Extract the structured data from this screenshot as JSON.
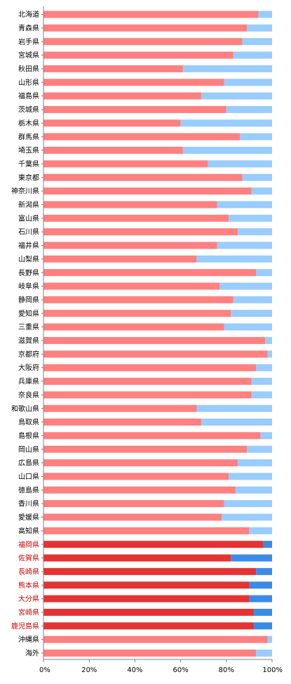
{
  "chart_data": {
    "type": "bar",
    "orientation": "horizontal",
    "stacked": true,
    "categories": [
      "北海道",
      "青森県",
      "岩手県",
      "宮城県",
      "秋田県",
      "山形県",
      "福島県",
      "茨城県",
      "栃木県",
      "群馬県",
      "埼玉県",
      "千葉県",
      "東京都",
      "神奈川県",
      "新潟県",
      "富山県",
      "石川県",
      "福井県",
      "山梨県",
      "長野県",
      "岐阜県",
      "静岡県",
      "愛知県",
      "三重県",
      "滋賀県",
      "京都府",
      "大阪府",
      "兵庫県",
      "奈良県",
      "和歌山県",
      "鳥取県",
      "島根県",
      "岡山県",
      "広島県",
      "山口県",
      "徳島県",
      "香川県",
      "愛媛県",
      "高知県",
      "福岡県",
      "佐賀県",
      "長崎県",
      "熊本県",
      "大分県",
      "宮崎県",
      "鹿児島県",
      "沖縄県",
      "海外"
    ],
    "highlighted_categories": [
      "福岡県",
      "佐賀県",
      "長崎県",
      "熊本県",
      "大分県",
      "宮崎県",
      "鹿児島県"
    ],
    "series": [
      {
        "values": [
          94,
          89,
          87,
          83,
          61,
          79,
          69,
          80,
          60,
          86,
          61,
          72,
          87,
          91,
          76,
          81,
          85,
          76,
          67,
          93,
          77,
          83,
          82,
          79,
          97,
          98,
          93,
          91,
          91,
          67,
          69,
          95,
          89,
          85,
          81,
          84,
          79,
          78,
          90,
          96,
          82,
          93,
          90,
          90,
          92,
          92,
          98,
          93
        ]
      },
      {
        "values": [
          6,
          11,
          13,
          17,
          39,
          21,
          31,
          20,
          40,
          14,
          39,
          28,
          13,
          9,
          24,
          19,
          15,
          24,
          33,
          7,
          23,
          17,
          18,
          21,
          3,
          2,
          7,
          9,
          9,
          33,
          31,
          5,
          11,
          15,
          19,
          16,
          21,
          22,
          10,
          4,
          18,
          7,
          10,
          10,
          8,
          8,
          2,
          7
        ]
      }
    ],
    "xlim": [
      0,
      100
    ],
    "xticks": [
      "0%",
      "20%",
      "40%",
      "60%",
      "80%",
      "100%"
    ],
    "colors": {
      "series1": "#ff8080",
      "series2": "#99ccff",
      "series1_highlight": "#e53333",
      "series2_highlight": "#3a8be6",
      "highlight_label": "#cc0000",
      "axis": "#808080",
      "gridline": "#c0c0c0"
    },
    "grid": false,
    "legend": "none"
  }
}
